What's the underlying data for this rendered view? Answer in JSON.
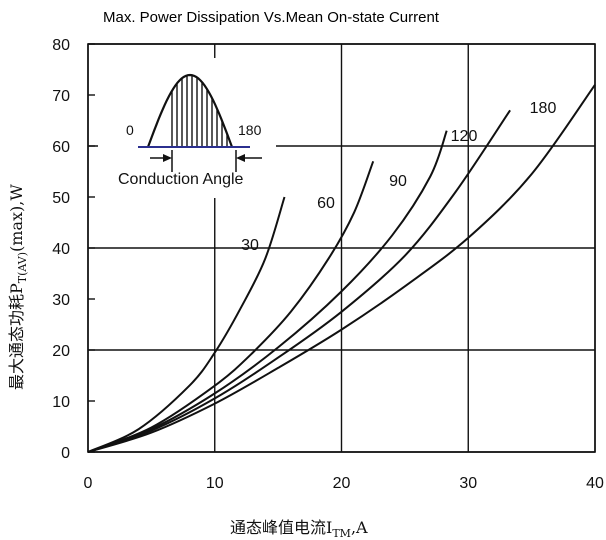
{
  "chart_data": {
    "type": "line",
    "title": "Max. Power Dissipation Vs.Mean On-state Current",
    "xlabel": "通态峰值电流I",
    "xlabel_sub": "TM",
    "xlabel_unit": ",A",
    "ylabel": "最大通态功耗P",
    "ylabel_sub": "T(AV)",
    "ylabel_unit": "(max),W",
    "xlim": [
      0,
      40
    ],
    "ylim": [
      0,
      80
    ],
    "x_ticks": [
      "0",
      "10",
      "20",
      "30",
      "40"
    ],
    "y_ticks": [
      "0",
      "10",
      "20",
      "30",
      "40",
      "50",
      "60",
      "70",
      "80"
    ],
    "grid": true,
    "series": [
      {
        "name": "30",
        "x": [
          0,
          4,
          8,
          10,
          12,
          14,
          15.5
        ],
        "y": [
          0,
          4.5,
          13,
          19.5,
          28,
          38,
          50
        ]
      },
      {
        "name": "60",
        "x": [
          0,
          5,
          10,
          13,
          16,
          19,
          21,
          22.5
        ],
        "y": [
          0,
          4.8,
          13,
          19.5,
          27.5,
          38,
          47,
          57
        ]
      },
      {
        "name": "90",
        "x": [
          0,
          5,
          10,
          15,
          20,
          24,
          27,
          28.3
        ],
        "y": [
          0,
          4.5,
          11.5,
          20.5,
          31.5,
          42.5,
          54,
          63
        ]
      },
      {
        "name": "120",
        "x": [
          0,
          5,
          10,
          15,
          20,
          25,
          29,
          33.3
        ],
        "y": [
          0,
          4.2,
          10.5,
          18.5,
          27.5,
          38.5,
          51,
          67
        ]
      },
      {
        "name": "180",
        "x": [
          0,
          5,
          10,
          15,
          20,
          25,
          30,
          35,
          40
        ],
        "y": [
          0,
          3.8,
          9.5,
          16.5,
          24,
          32.5,
          42,
          54.5,
          72
        ]
      }
    ],
    "inset": {
      "label_start": "0",
      "label_end": "180",
      "caption": "Conduction Angle"
    }
  }
}
